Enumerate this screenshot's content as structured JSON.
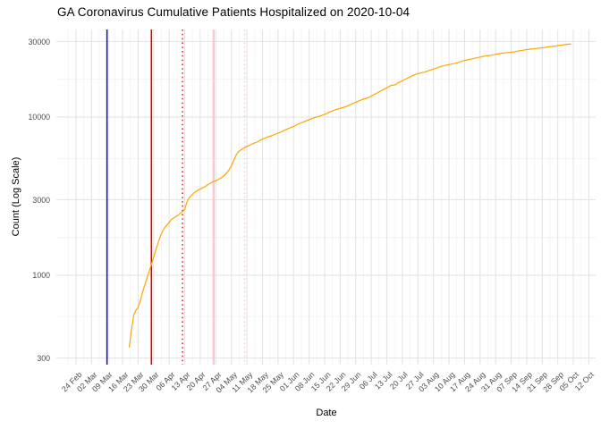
{
  "chart_data": {
    "type": "line",
    "title": "GA Coronavirus Cumulative Patients Hospitalized on 2020-10-04",
    "xlabel": "Date",
    "ylabel": "Count (Log Scale)",
    "x_tick_labels": [
      "24 Feb",
      "02 Mar",
      "09 Mar",
      "16 Mar",
      "23 Mar",
      "30 Mar",
      "06 Apr",
      "13 Apr",
      "20 Apr",
      "27 Apr",
      "04 May",
      "11 May",
      "18 May",
      "25 May",
      "01 Jun",
      "08 Jun",
      "15 Jun",
      "22 Jun",
      "29 Jun",
      "06 Jul",
      "13 Jul",
      "20 Jul",
      "27 Jul",
      "03 Aug",
      "10 Aug",
      "17 Aug",
      "24 Aug",
      "31 Aug",
      "07 Sep",
      "14 Sep",
      "21 Sep",
      "28 Sep",
      "05 Oct",
      "12 Oct"
    ],
    "x_tick_dates": [
      "2020-02-24",
      "2020-03-02",
      "2020-03-09",
      "2020-03-16",
      "2020-03-23",
      "2020-03-30",
      "2020-04-06",
      "2020-04-13",
      "2020-04-20",
      "2020-04-27",
      "2020-05-04",
      "2020-05-11",
      "2020-05-18",
      "2020-05-25",
      "2020-06-01",
      "2020-06-08",
      "2020-06-15",
      "2020-06-22",
      "2020-06-29",
      "2020-07-06",
      "2020-07-13",
      "2020-07-20",
      "2020-07-27",
      "2020-08-03",
      "2020-08-10",
      "2020-08-17",
      "2020-08-24",
      "2020-08-31",
      "2020-09-07",
      "2020-09-14",
      "2020-09-21",
      "2020-09-28",
      "2020-10-05",
      "2020-10-12"
    ],
    "y_tick_labels": [
      "30000",
      "10000",
      "3000",
      "1000",
      "300"
    ],
    "y_major_values": [
      300,
      1000,
      3000,
      10000,
      30000
    ],
    "y_minor_values": [
      548,
      1732,
      5477,
      17321
    ],
    "yscale": "log10",
    "ylim": [
      273,
      35800
    ],
    "grid": "on",
    "legend": "none",
    "line_color": "#FFA500",
    "grid_major_color": "#E4E4E4",
    "grid_minor_color": "#EFEFEF",
    "vlines": [
      {
        "name": "blue-solid-vline",
        "date": "2020-03-09",
        "color": "#1414D2",
        "style": "solid",
        "width": 1.6
      },
      {
        "name": "red-solid-vline",
        "date": "2020-03-29",
        "color": "#DD0000",
        "style": "solid",
        "width": 1.6
      },
      {
        "name": "red-dotted-vline",
        "date": "2020-04-12",
        "color": "#DD0000",
        "style": "dotted",
        "width": 1.3
      },
      {
        "name": "pink-solid-vline",
        "date": "2020-04-26",
        "color": "#FFC3CD",
        "style": "solid",
        "width": 2.2
      },
      {
        "name": "pink-dotted-vline",
        "date": "2020-05-10",
        "color": "#FFC9D2",
        "style": "dotted",
        "width": 1.6
      }
    ],
    "series": [
      {
        "name": "cumulative-hospitalized",
        "points": [
          [
            "2020-03-19",
            350
          ],
          [
            "2020-03-20",
            450
          ],
          [
            "2020-03-21",
            560
          ],
          [
            "2020-03-22",
            600
          ],
          [
            "2020-03-23",
            625
          ],
          [
            "2020-03-24",
            690
          ],
          [
            "2020-03-25",
            780
          ],
          [
            "2020-03-26",
            870
          ],
          [
            "2020-03-27",
            960
          ],
          [
            "2020-03-28",
            1060
          ],
          [
            "2020-03-29",
            1170
          ],
          [
            "2020-03-30",
            1300
          ],
          [
            "2020-03-31",
            1450
          ],
          [
            "2020-04-01",
            1600
          ],
          [
            "2020-04-02",
            1760
          ],
          [
            "2020-04-03",
            1900
          ],
          [
            "2020-04-04",
            2000
          ],
          [
            "2020-04-05",
            2070
          ],
          [
            "2020-04-06",
            2160
          ],
          [
            "2020-04-07",
            2250
          ],
          [
            "2020-04-08",
            2300
          ],
          [
            "2020-04-09",
            2350
          ],
          [
            "2020-04-10",
            2400
          ],
          [
            "2020-04-11",
            2460
          ],
          [
            "2020-04-12",
            2520
          ],
          [
            "2020-04-13",
            2620
          ],
          [
            "2020-04-14",
            2900
          ],
          [
            "2020-04-15",
            3080
          ],
          [
            "2020-04-16",
            3200
          ],
          [
            "2020-04-17",
            3300
          ],
          [
            "2020-04-18",
            3380
          ],
          [
            "2020-04-19",
            3450
          ],
          [
            "2020-04-20",
            3510
          ],
          [
            "2020-04-21",
            3560
          ],
          [
            "2020-04-22",
            3620
          ],
          [
            "2020-04-23",
            3700
          ],
          [
            "2020-04-24",
            3780
          ],
          [
            "2020-04-25",
            3850
          ],
          [
            "2020-04-26",
            3910
          ],
          [
            "2020-04-27",
            3960
          ],
          [
            "2020-04-28",
            4020
          ],
          [
            "2020-04-29",
            4100
          ],
          [
            "2020-04-30",
            4180
          ],
          [
            "2020-05-01",
            4300
          ],
          [
            "2020-05-02",
            4450
          ],
          [
            "2020-05-03",
            4650
          ],
          [
            "2020-05-04",
            4900
          ],
          [
            "2020-05-05",
            5300
          ],
          [
            "2020-05-06",
            5700
          ],
          [
            "2020-05-07",
            6000
          ],
          [
            "2020-05-08",
            6150
          ],
          [
            "2020-05-09",
            6280
          ],
          [
            "2020-05-10",
            6400
          ],
          [
            "2020-05-11",
            6520
          ],
          [
            "2020-05-12",
            6620
          ],
          [
            "2020-05-13",
            6720
          ],
          [
            "2020-05-14",
            6820
          ],
          [
            "2020-05-15",
            6900
          ],
          [
            "2020-05-16",
            7000
          ],
          [
            "2020-05-17",
            7150
          ],
          [
            "2020-05-18",
            7250
          ],
          [
            "2020-05-20",
            7450
          ],
          [
            "2020-05-22",
            7600
          ],
          [
            "2020-05-24",
            7800
          ],
          [
            "2020-05-26",
            8000
          ],
          [
            "2020-05-28",
            8250
          ],
          [
            "2020-05-30",
            8500
          ],
          [
            "2020-06-01",
            8700
          ],
          [
            "2020-06-03",
            9000
          ],
          [
            "2020-06-05",
            9250
          ],
          [
            "2020-06-07",
            9500
          ],
          [
            "2020-06-09",
            9750
          ],
          [
            "2020-06-11",
            9950
          ],
          [
            "2020-06-13",
            10150
          ],
          [
            "2020-06-15",
            10400
          ],
          [
            "2020-06-17",
            10700
          ],
          [
            "2020-06-19",
            11000
          ],
          [
            "2020-06-21",
            11250
          ],
          [
            "2020-06-23",
            11450
          ],
          [
            "2020-06-25",
            11700
          ],
          [
            "2020-06-27",
            12050
          ],
          [
            "2020-06-29",
            12400
          ],
          [
            "2020-07-01",
            12750
          ],
          [
            "2020-07-03",
            13050
          ],
          [
            "2020-07-05",
            13300
          ],
          [
            "2020-07-07",
            13800
          ],
          [
            "2020-07-09",
            14300
          ],
          [
            "2020-07-11",
            14800
          ],
          [
            "2020-07-13",
            15300
          ],
          [
            "2020-07-15",
            15850
          ],
          [
            "2020-07-17",
            16000
          ],
          [
            "2020-07-18",
            16450
          ],
          [
            "2020-07-20",
            16900
          ],
          [
            "2020-07-22",
            17500
          ],
          [
            "2020-07-24",
            18100
          ],
          [
            "2020-07-26",
            18600
          ],
          [
            "2020-07-28",
            19000
          ],
          [
            "2020-07-30",
            19200
          ],
          [
            "2020-08-01",
            19700
          ],
          [
            "2020-08-03",
            20100
          ],
          [
            "2020-08-05",
            20600
          ],
          [
            "2020-08-07",
            21000
          ],
          [
            "2020-08-09",
            21300
          ],
          [
            "2020-08-11",
            21600
          ],
          [
            "2020-08-13",
            21900
          ],
          [
            "2020-08-15",
            22300
          ],
          [
            "2020-08-17",
            22800
          ],
          [
            "2020-08-19",
            23100
          ],
          [
            "2020-08-21",
            23400
          ],
          [
            "2020-08-23",
            23800
          ],
          [
            "2020-08-25",
            24100
          ],
          [
            "2020-08-27",
            24400
          ],
          [
            "2020-08-29",
            24600
          ],
          [
            "2020-08-31",
            24900
          ],
          [
            "2020-09-02",
            25200
          ],
          [
            "2020-09-04",
            25400
          ],
          [
            "2020-09-06",
            25600
          ],
          [
            "2020-09-08",
            25800
          ],
          [
            "2020-09-10",
            26100
          ],
          [
            "2020-09-12",
            26400
          ],
          [
            "2020-09-14",
            26700
          ],
          [
            "2020-09-16",
            26900
          ],
          [
            "2020-09-18",
            27100
          ],
          [
            "2020-09-20",
            27300
          ],
          [
            "2020-09-22",
            27500
          ],
          [
            "2020-09-24",
            27800
          ],
          [
            "2020-09-26",
            28000
          ],
          [
            "2020-09-28",
            28300
          ],
          [
            "2020-09-30",
            28500
          ],
          [
            "2020-10-02",
            28800
          ],
          [
            "2020-10-04",
            29000
          ]
        ]
      }
    ]
  }
}
